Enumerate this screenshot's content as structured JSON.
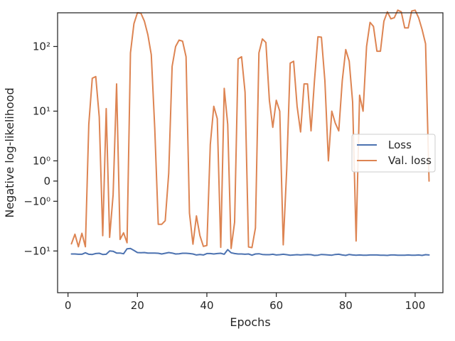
{
  "chart_data": {
    "type": "line",
    "title": "",
    "xlabel": "Epochs",
    "ylabel": "Negative log-likelihood",
    "yscale": "symlog",
    "xlim": [
      -3,
      108
    ],
    "ylim": [
      -45,
      320
    ],
    "grid": false,
    "legend_position": "center-right",
    "x_ticks": [
      0,
      20,
      40,
      60,
      80,
      100
    ],
    "y_ticks": [
      {
        "value": 100,
        "label": "10²"
      },
      {
        "value": 10,
        "label": "10¹"
      },
      {
        "value": 1,
        "label": "10⁰"
      },
      {
        "value": 0,
        "label": "0"
      },
      {
        "value": -1,
        "label": "−10⁰"
      },
      {
        "value": -10,
        "label": "−10¹"
      }
    ],
    "series": [
      {
        "name": "Loss",
        "color": "#4c72b0",
        "x": [
          1,
          2,
          3,
          4,
          5,
          6,
          7,
          8,
          9,
          10,
          11,
          12,
          13,
          14,
          15,
          16,
          17,
          18,
          19,
          20,
          21,
          22,
          23,
          24,
          25,
          26,
          27,
          28,
          29,
          30,
          31,
          32,
          33,
          34,
          35,
          36,
          37,
          38,
          39,
          40,
          41,
          42,
          43,
          44,
          45,
          46,
          47,
          48,
          49,
          50,
          51,
          52,
          53,
          54,
          55,
          56,
          57,
          58,
          59,
          60,
          61,
          62,
          63,
          64,
          65,
          66,
          67,
          68,
          69,
          70,
          71,
          72,
          73,
          74,
          75,
          76,
          77,
          78,
          79,
          80,
          81,
          82,
          83,
          84,
          85,
          86,
          87,
          88,
          89,
          90,
          91,
          92,
          93,
          94,
          95,
          96,
          97,
          98,
          99,
          100,
          101,
          102,
          103,
          104
        ],
        "values": [
          -11.2,
          -11.2,
          -11.3,
          -11.3,
          -10.7,
          -11.3,
          -11.4,
          -11.0,
          -10.9,
          -11.4,
          -11.3,
          -10.0,
          -10.1,
          -10.8,
          -10.8,
          -11.1,
          -9.2,
          -9.1,
          -9.8,
          -10.6,
          -10.7,
          -10.6,
          -10.8,
          -10.8,
          -10.8,
          -10.9,
          -11.2,
          -10.9,
          -10.6,
          -10.8,
          -11.2,
          -11.1,
          -10.9,
          -10.9,
          -11.0,
          -11.2,
          -11.6,
          -11.4,
          -11.6,
          -11.0,
          -11.0,
          -11.2,
          -11.0,
          -10.9,
          -11.3,
          -9.5,
          -10.7,
          -11.0,
          -11.2,
          -11.2,
          -11.3,
          -11.2,
          -11.7,
          -11.2,
          -11.1,
          -11.4,
          -11.5,
          -11.5,
          -11.3,
          -11.6,
          -11.5,
          -11.3,
          -11.5,
          -11.7,
          -11.6,
          -11.5,
          -11.6,
          -11.5,
          -11.4,
          -11.5,
          -11.8,
          -11.7,
          -11.4,
          -11.5,
          -11.6,
          -11.7,
          -11.4,
          -11.3,
          -11.6,
          -11.8,
          -11.4,
          -11.6,
          -11.7,
          -11.6,
          -11.7,
          -11.7,
          -11.6,
          -11.6,
          -11.6,
          -11.7,
          -11.7,
          -11.8,
          -11.6,
          -11.6,
          -11.7,
          -11.7,
          -11.7,
          -11.6,
          -11.7,
          -11.7,
          -11.6,
          -11.8,
          -11.5,
          -11.6
        ]
      },
      {
        "name": "Val. loss",
        "color": "#dd8452",
        "x": [
          1,
          2,
          3,
          4,
          5,
          6,
          7,
          8,
          9,
          10,
          11,
          12,
          13,
          14,
          15,
          16,
          17,
          18,
          19,
          20,
          21,
          22,
          23,
          24,
          25,
          26,
          27,
          28,
          29,
          30,
          31,
          32,
          33,
          34,
          35,
          36,
          37,
          38,
          39,
          40,
          41,
          42,
          43,
          44,
          45,
          46,
          47,
          48,
          49,
          50,
          51,
          52,
          53,
          54,
          55,
          56,
          57,
          58,
          59,
          60,
          61,
          62,
          63,
          64,
          65,
          66,
          67,
          68,
          69,
          70,
          71,
          72,
          73,
          74,
          75,
          76,
          77,
          78,
          79,
          80,
          81,
          82,
          83,
          84,
          85,
          86,
          87,
          88,
          89,
          90,
          91,
          92,
          93,
          94,
          95,
          96,
          97,
          98,
          99,
          100,
          101,
          102,
          103,
          104
        ],
        "values": [
          -7.6,
          -5.2,
          -8.5,
          -5.0,
          -8.5,
          6.0,
          33,
          35,
          8,
          -5.5,
          11,
          -5.9,
          -0.6,
          27,
          -6.4,
          -4.9,
          -7.3,
          80,
          220,
          320,
          315,
          240,
          150,
          75,
          5,
          -3.4,
          -3.4,
          -2.9,
          0.3,
          50,
          100,
          125,
          120,
          70,
          -2.0,
          -7.7,
          -2.3,
          -5.5,
          -8.4,
          -8.1,
          2.5,
          12,
          7.5,
          -8.7,
          23,
          6,
          -9.1,
          -3.1,
          65,
          70,
          20,
          -8.6,
          -8.8,
          -4.0,
          80,
          130,
          115,
          15,
          5.3,
          15,
          10,
          -7.9,
          0.5,
          56,
          60,
          12,
          4.4,
          27,
          27,
          4.6,
          30,
          140,
          138,
          30,
          1.0,
          10,
          6.3,
          4.6,
          30,
          90,
          60,
          14,
          -6.8,
          18,
          10,
          100,
          230,
          200,
          85,
          85,
          240,
          330,
          260,
          270,
          350,
          330,
          190,
          190,
          340,
          350,
          270,
          180,
          110,
          0
        ]
      }
    ]
  }
}
